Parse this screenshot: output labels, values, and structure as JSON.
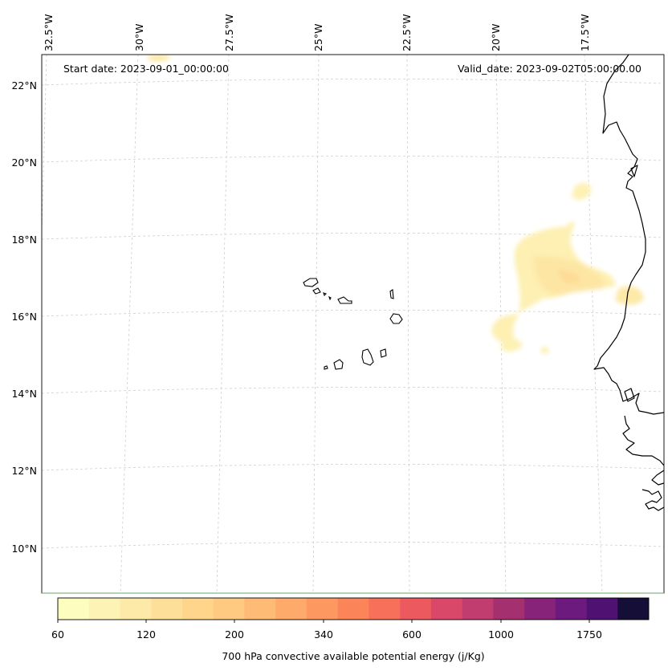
{
  "header": {
    "start_date": "Start date: 2023-09-01_00:00:00",
    "valid_date": "Valid_date: 2023-09-02T05:00:00.00"
  },
  "longitude_labels": [
    "32.5°W",
    "30°W",
    "27.5°W",
    "25°W",
    "22.5°W",
    "20°W",
    "17.5°W"
  ],
  "latitude_labels": [
    "22°N",
    "20°N",
    "18°N",
    "16°N",
    "14°N",
    "12°N",
    "10°N"
  ],
  "colorbar": {
    "label": "700 hPa convective available potential energy (j/Kg)",
    "tick_labels": [
      "60",
      "120",
      "200",
      "340",
      "600",
      "1000",
      "1750"
    ],
    "colors": [
      "#fcfdbf",
      "#fdf3b5",
      "#fde9a8",
      "#fedf99",
      "#fed58b",
      "#fec980",
      "#febb76",
      "#fdaa6b",
      "#fd9860",
      "#fb8558",
      "#f6705a",
      "#ec5a5f",
      "#d94868",
      "#c13c6f",
      "#a5306f",
      "#872378",
      "#6c1a7d",
      "#4f1273",
      "#150e37"
    ],
    "colormap": "magma_r"
  },
  "grid": true
}
